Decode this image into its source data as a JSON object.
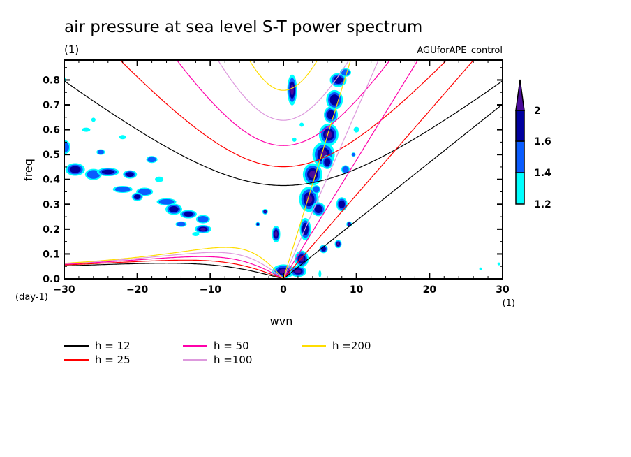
{
  "chart_data": {
    "type": "heatmap",
    "title": "air pressure at sea level S-T power spectrum",
    "units_label": "(1)",
    "experiment_label": "AGUforAPE_control",
    "xlabel": "wvn",
    "ylabel": "freq",
    "x_unit": "(1)",
    "y_unit": "(day-1)",
    "xlim": [
      -30,
      30
    ],
    "ylim": [
      0.0,
      0.88
    ],
    "x_ticks": [
      -30,
      -20,
      -10,
      0,
      10,
      20,
      30
    ],
    "x_tick_labels": [
      "−30",
      "−20",
      "−10",
      "0",
      "10",
      "20",
      "30"
    ],
    "y_ticks": [
      0.0,
      0.1,
      0.2,
      0.3,
      0.4,
      0.5,
      0.6,
      0.7,
      0.8
    ],
    "y_tick_labels": [
      "0.0",
      "0.1",
      "0.2",
      "0.3",
      "0.4",
      "0.5",
      "0.6",
      "0.7",
      "0.8"
    ],
    "colorbar": {
      "levels": [
        1.2,
        1.4,
        1.6,
        2.0
      ],
      "labels": [
        "1.2",
        "1.4",
        "1.6",
        "2"
      ],
      "colors": [
        "#00ffff",
        "#0a5cff",
        "#00009f",
        "#4b0b9b"
      ],
      "extend": "max"
    },
    "shaded_regions": [
      {
        "level": 1.2,
        "description": "westward band from wvn -30 freq 0.5 down to wvn -7 freq 0.15"
      },
      {
        "level": 2.0,
        "description": "eastward band along wvn 1-9, freq 0-0.85"
      },
      {
        "level": 2.0,
        "description": "blob at wvn 1, freq 0.7-0.8"
      },
      {
        "level": 2.0,
        "description": "blob at wvn 0, freq 0-0.05"
      }
    ],
    "dispersion_curves": {
      "equivalent_depths_m": [
        12,
        25,
        50,
        100,
        200
      ],
      "wave_types": [
        "kelvin",
        "inertia-gravity n=1",
        "equatorial rossby n=1"
      ]
    },
    "legend": [
      {
        "label": "h = 12",
        "color": "#000000"
      },
      {
        "label": "h = 25",
        "color": "#ff0000"
      },
      {
        "label": "h = 50",
        "color": "#ff00aa"
      },
      {
        "label": "h =100",
        "color": "#dd99dd"
      },
      {
        "label": "h =200",
        "color": "#ffdd00"
      }
    ],
    "legend_position": "bottom"
  }
}
